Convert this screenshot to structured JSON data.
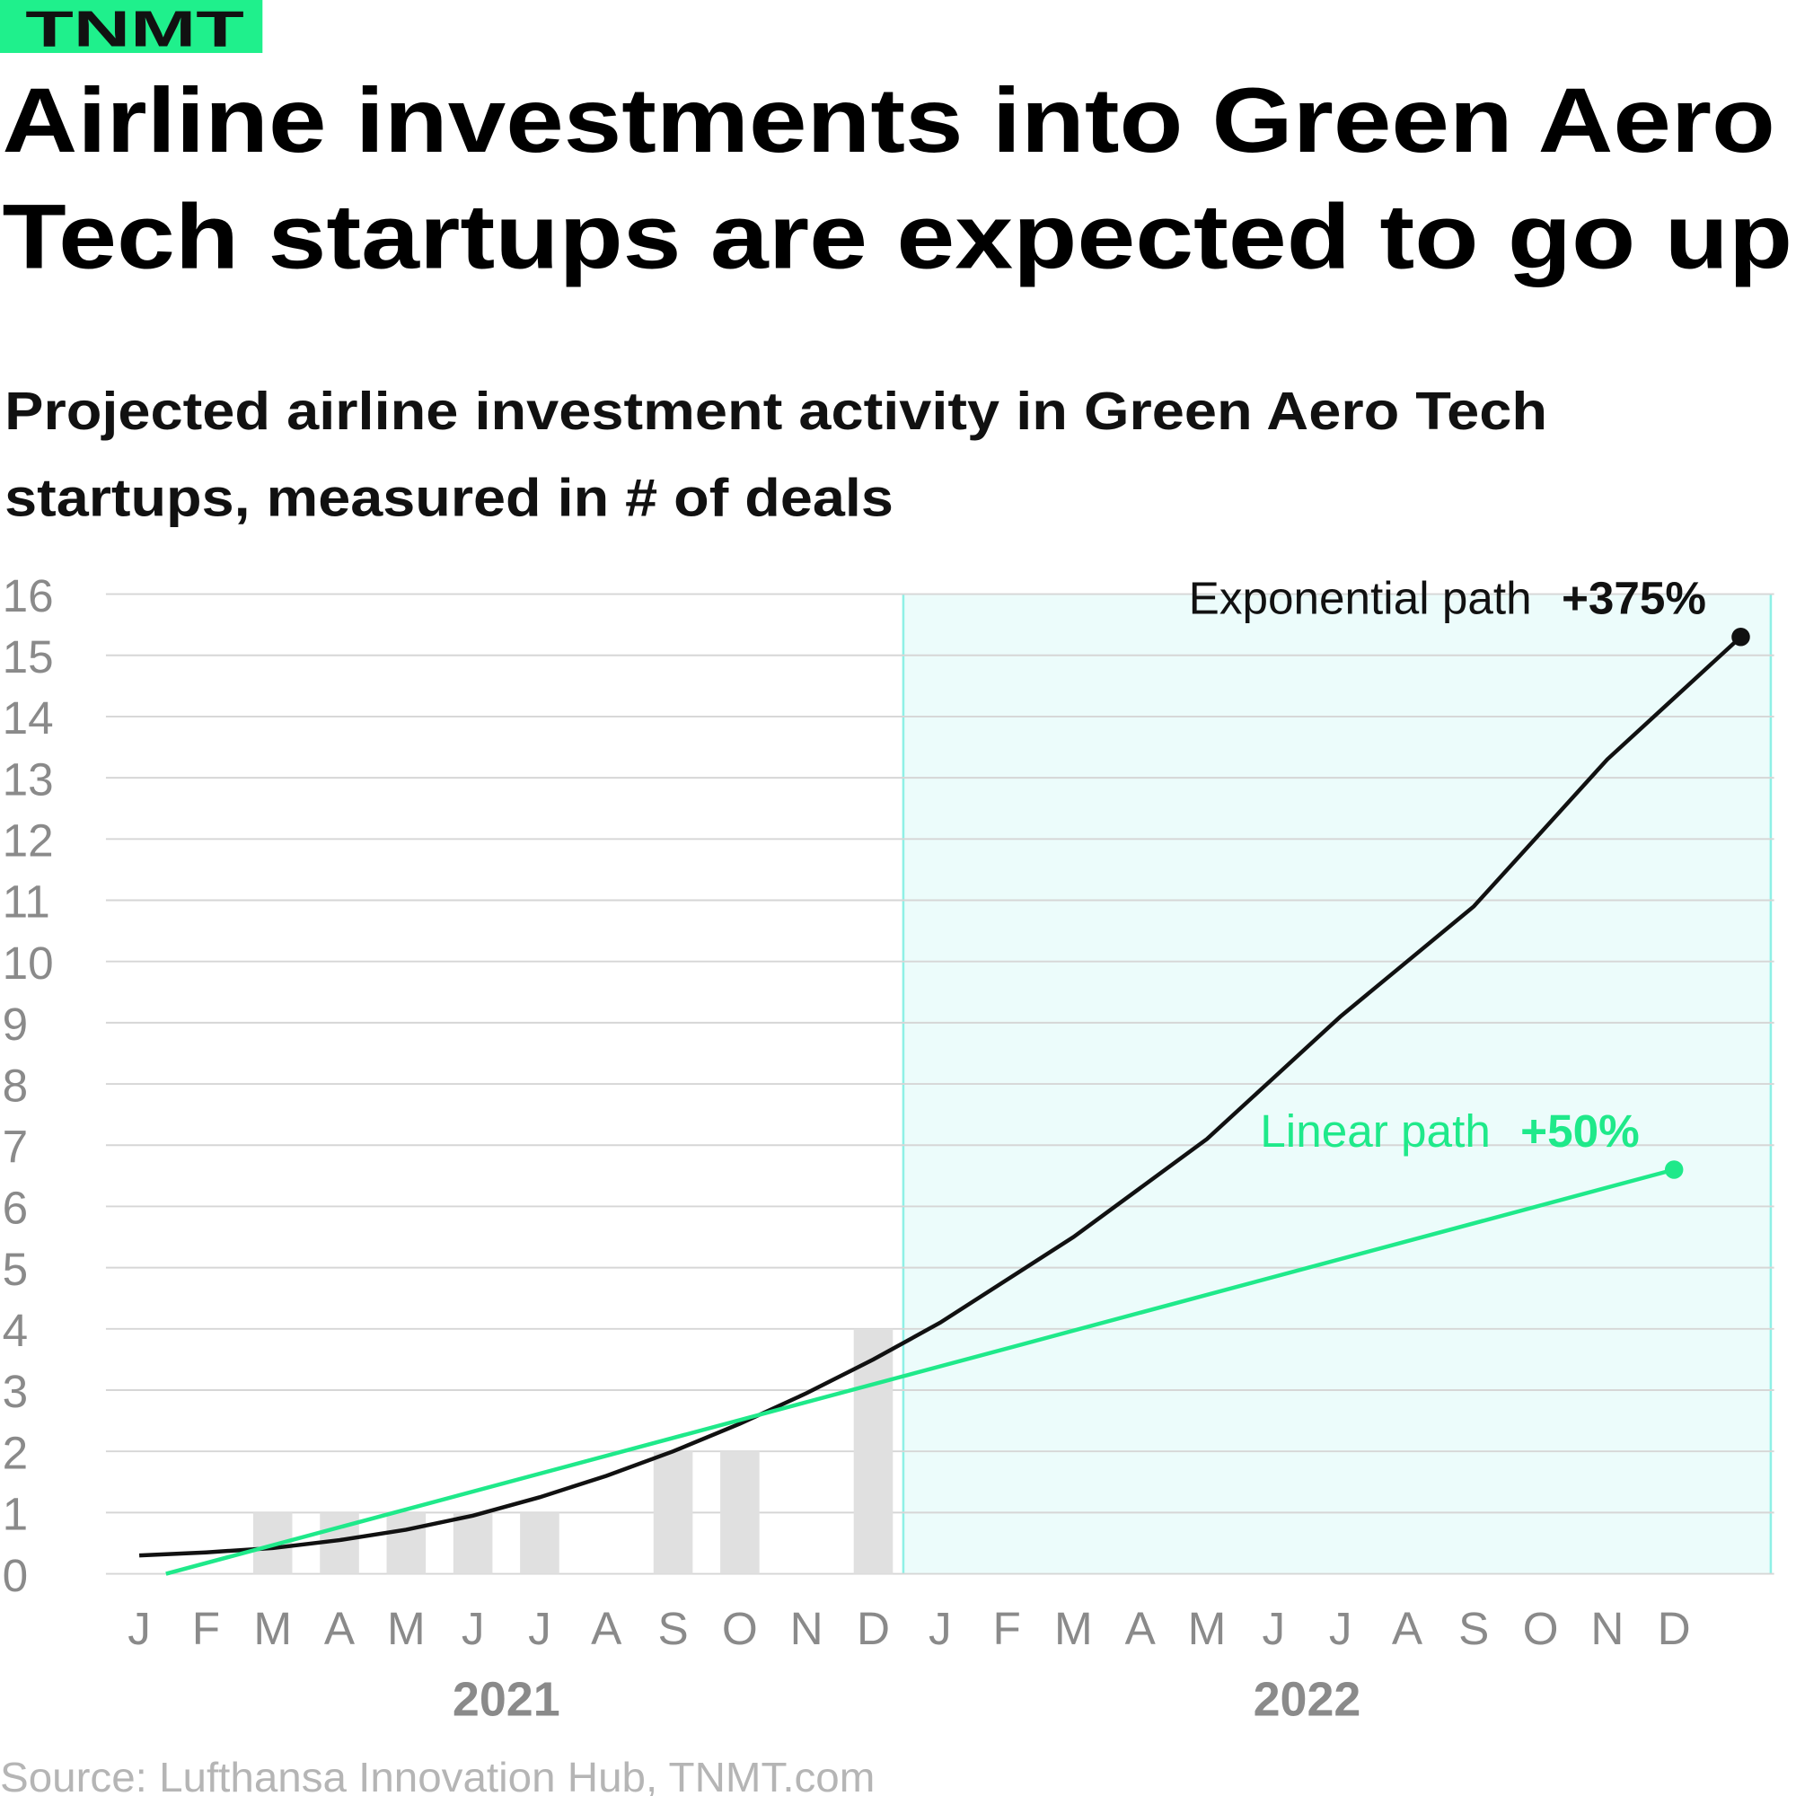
{
  "chart_data": {
    "type": "bar",
    "brand": "TNMT",
    "title": [
      "Airline investments into Green Aero",
      "Tech startups are expected to go up"
    ],
    "subtitle": [
      "Projected airline investment activity in Green Aero Tech",
      "startups, measured in # of deals"
    ],
    "source": "Source: Lufthansa Innovation Hub, TNMT.com",
    "categories": [
      "J",
      "F",
      "M",
      "A",
      "M",
      "J",
      "J",
      "A",
      "S",
      "O",
      "N",
      "D",
      "J",
      "F",
      "M",
      "A",
      "M",
      "J",
      "J",
      "A",
      "S",
      "O",
      "N",
      "D"
    ],
    "years": [
      {
        "label": "2021",
        "from": 0,
        "to": 11
      },
      {
        "label": "2022",
        "from": 12,
        "to": 23
      }
    ],
    "values": [
      0,
      0,
      1,
      1,
      1,
      1,
      1,
      0,
      2,
      2,
      0,
      4,
      null,
      null,
      null,
      null,
      null,
      null,
      null,
      null,
      null,
      null,
      null,
      null
    ],
    "color": "#e0e0e0",
    "lines": [
      {
        "name": "Exponential path",
        "change": "+375%",
        "color": "#111111",
        "x": [
          0,
          1,
          2,
          3,
          4,
          5,
          6,
          7,
          8,
          9,
          10,
          11,
          12,
          13,
          14,
          15,
          16,
          17,
          18,
          19,
          20,
          21,
          22,
          23,
          24
        ],
        "values": [
          0.3,
          0.35,
          0.42,
          0.55,
          0.72,
          0.95,
          1.25,
          1.6,
          2.0,
          2.45,
          2.95,
          3.5,
          4.1,
          4.8,
          5.5,
          6.3,
          7.1,
          8.1,
          9.1,
          10.0,
          10.9,
          12.1,
          13.3,
          14.3,
          15.3
        ]
      },
      {
        "name": "Linear path",
        "change": "+50%",
        "color": "#1fe98a",
        "x": [
          0.4,
          23
        ],
        "values": [
          0,
          6.6
        ]
      }
    ],
    "shaded_range": [
      11.45,
      24.45
    ],
    "shade_color": "#ecfcfb",
    "xlim": [
      -0.5,
      24.5
    ],
    "ylim": [
      0,
      16
    ],
    "yticks": [
      0,
      1,
      2,
      3,
      4,
      5,
      6,
      7,
      8,
      9,
      10,
      11,
      12,
      13,
      14,
      15,
      16
    ],
    "grid": true
  }
}
